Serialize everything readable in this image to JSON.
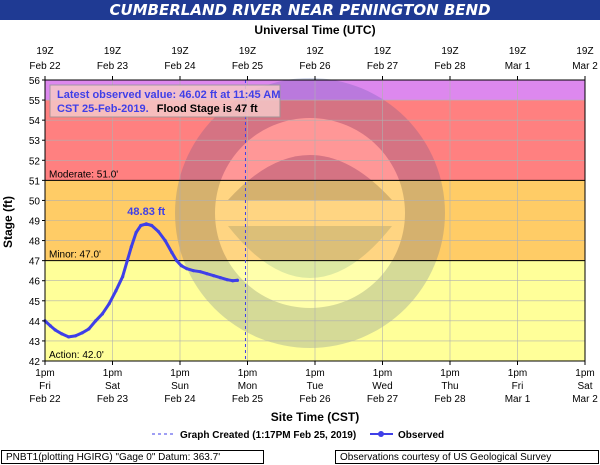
{
  "title": "CUMBERLAND RIVER NEAR PENINGTON BEND",
  "top_axis_title": "Universal Time (UTC)",
  "bottom_axis_title": "Site Time (CST)",
  "y_axis_title": "Stage (ft)",
  "info_box": {
    "line1": "Latest observed value: 46.02 ft at 11:45 AM",
    "line2_blue": "CST 25-Feb-2019.",
    "line2_black": "Flood Stage is 47 ft"
  },
  "legend": {
    "created": "Graph Created (1:17PM Feb 25, 2019)",
    "observed": "Observed"
  },
  "footer": {
    "left": "PNBT1(plotting HGIRG) \"Gage 0\" Datum: 363.7'",
    "right": "Observations courtesy of US Geological Survey"
  },
  "colors": {
    "title_bar": "#1f3a93",
    "series": "#3f3fe8",
    "action_band": "#ffff99",
    "minor_band": "#ffcc66",
    "moderate_band": "#ff8080",
    "major_band": "#dd88ee"
  },
  "chart_data": {
    "type": "line",
    "ylim": [
      42,
      56
    ],
    "xlim_days_from_feb22_1pm": [
      0,
      8
    ],
    "y_ticks": [
      42,
      43,
      44,
      45,
      46,
      47,
      48,
      49,
      50,
      51,
      52,
      53,
      54,
      55,
      56
    ],
    "top_ticks": [
      {
        "time": "19Z",
        "date": "Feb 22"
      },
      {
        "time": "19Z",
        "date": "Feb 23"
      },
      {
        "time": "19Z",
        "date": "Feb 24"
      },
      {
        "time": "19Z",
        "date": "Feb 25"
      },
      {
        "time": "19Z",
        "date": "Feb 26"
      },
      {
        "time": "19Z",
        "date": "Feb 27"
      },
      {
        "time": "19Z",
        "date": "Feb 28"
      },
      {
        "time": "19Z",
        "date": "Mar 1"
      },
      {
        "time": "19Z",
        "date": "Mar 2"
      }
    ],
    "bottom_ticks": [
      {
        "time": "1pm",
        "day": "Fri",
        "date": "Feb 22"
      },
      {
        "time": "1pm",
        "day": "Sat",
        "date": "Feb 23"
      },
      {
        "time": "1pm",
        "day": "Sun",
        "date": "Feb 24"
      },
      {
        "time": "1pm",
        "day": "Mon",
        "date": "Feb 25"
      },
      {
        "time": "1pm",
        "day": "Tue",
        "date": "Feb 26"
      },
      {
        "time": "1pm",
        "day": "Wed",
        "date": "Feb 27"
      },
      {
        "time": "1pm",
        "day": "Thu",
        "date": "Feb 28"
      },
      {
        "time": "1pm",
        "day": "Fri",
        "date": "Mar 1"
      },
      {
        "time": "1pm",
        "day": "Sat",
        "date": "Mar 2"
      }
    ],
    "flood_categories": [
      {
        "name": "Action",
        "label": "Action: 42.0'",
        "from": 42,
        "to": 47
      },
      {
        "name": "Minor",
        "label": "Minor: 47.0'",
        "from": 47,
        "to": 51
      },
      {
        "name": "Moderate",
        "label": "Moderate: 51.0'",
        "from": 51,
        "to": 55
      },
      {
        "name": "Major",
        "label": "",
        "from": 55,
        "to": 56
      }
    ],
    "crest_label": "48.83 ft",
    "graph_created_x_days": 2.97,
    "series": [
      {
        "name": "Observed",
        "points": [
          [
            0.0,
            44.0
          ],
          [
            0.08,
            43.75
          ],
          [
            0.15,
            43.55
          ],
          [
            0.25,
            43.35
          ],
          [
            0.35,
            43.2
          ],
          [
            0.45,
            43.25
          ],
          [
            0.55,
            43.4
          ],
          [
            0.65,
            43.6
          ],
          [
            0.75,
            44.0
          ],
          [
            0.85,
            44.35
          ],
          [
            0.95,
            44.85
          ],
          [
            1.05,
            45.5
          ],
          [
            1.15,
            46.2
          ],
          [
            1.22,
            47.0
          ],
          [
            1.28,
            47.7
          ],
          [
            1.35,
            48.4
          ],
          [
            1.42,
            48.75
          ],
          [
            1.5,
            48.83
          ],
          [
            1.58,
            48.75
          ],
          [
            1.68,
            48.45
          ],
          [
            1.78,
            48.0
          ],
          [
            1.88,
            47.4
          ],
          [
            1.95,
            47.0
          ],
          [
            2.02,
            46.75
          ],
          [
            2.1,
            46.6
          ],
          [
            2.2,
            46.5
          ],
          [
            2.3,
            46.45
          ],
          [
            2.4,
            46.35
          ],
          [
            2.5,
            46.25
          ],
          [
            2.6,
            46.15
          ],
          [
            2.7,
            46.05
          ],
          [
            2.78,
            46.0
          ],
          [
            2.85,
            46.02
          ]
        ]
      }
    ]
  }
}
